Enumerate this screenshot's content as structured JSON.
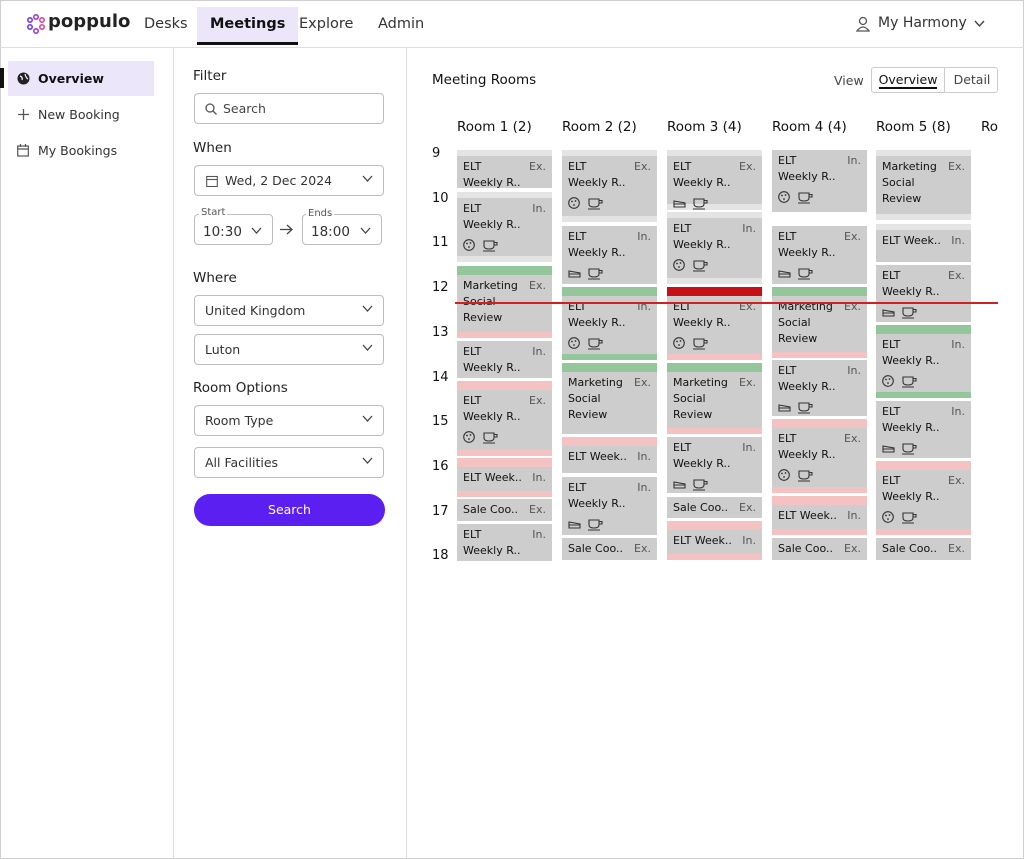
{
  "nav": {
    "logo": "poppulo",
    "tabs": [
      "Desks",
      "Meetings",
      "Explore",
      "Admin"
    ],
    "user": "My Harmony"
  },
  "sidebar": {
    "items": [
      "Overview",
      "New Booking",
      "My Bookings"
    ]
  },
  "filter": {
    "title": "Filter",
    "search_placeholder": "Search",
    "when": "When",
    "date": "Wed, 2 Dec 2024",
    "start_label": "Start",
    "start": "10:30",
    "end_label": "Ends",
    "end": "18:00",
    "where": "Where",
    "country": "United Kingdom",
    "city": "Luton",
    "room_options": "Room Options",
    "room_type": "Room Type",
    "facilities": "All Facilities",
    "button": "Search"
  },
  "main": {
    "title": "Meeting Rooms",
    "view_label": "View",
    "views": [
      "Overview",
      "Detail"
    ],
    "hours": [
      "9",
      "10",
      "11",
      "12",
      "13",
      "14",
      "15",
      "16",
      "17",
      "18"
    ],
    "rooms": [
      {
        "name": "Room 1 (2)",
        "bookings": [
          {
            "lines": [
              "ELT",
              "Weekly R.."
            ],
            "tag": "Ex."
          },
          {
            "lines": [
              "ELT",
              "Weekly R.."
            ],
            "tag": "In."
          },
          {
            "lines": [
              "Marketing",
              "Social",
              "Review"
            ],
            "tag": "Ex."
          },
          {
            "lines": [
              "ELT",
              "Weekly R.."
            ],
            "tag": "In."
          },
          {
            "lines": [
              "ELT",
              "Weekly R.."
            ],
            "tag": "Ex."
          },
          {
            "lines": [
              "ELT Week.."
            ],
            "tag": "In."
          },
          {
            "lines": [
              "Sale Coo.."
            ],
            "tag": "Ex."
          },
          {
            "lines": [
              "ELT",
              "Weekly R.."
            ],
            "tag": "In."
          }
        ]
      },
      {
        "name": "Room 2 (2)",
        "bookings": [
          {
            "lines": [
              "ELT",
              "Weekly R.."
            ],
            "tag": "Ex."
          },
          {
            "lines": [
              "ELT",
              "Weekly R.."
            ],
            "tag": "In."
          },
          {
            "lines": [
              "ELT",
              "Weekly R.."
            ],
            "tag": "In."
          },
          {
            "lines": [
              "Marketing",
              "Social",
              "Review"
            ],
            "tag": "Ex."
          },
          {
            "lines": [
              "ELT Week.."
            ],
            "tag": "In."
          },
          {
            "lines": [
              "ELT",
              "Weekly R.."
            ],
            "tag": "In."
          },
          {
            "lines": [
              "Sale Coo.."
            ],
            "tag": "Ex."
          }
        ]
      },
      {
        "name": "Room 3 (4)",
        "bookings": [
          {
            "lines": [
              "ELT",
              "Weekly R.."
            ],
            "tag": "Ex."
          },
          {
            "lines": [
              "ELT",
              "Weekly R.."
            ],
            "tag": "In."
          },
          {
            "lines": [
              "ELT",
              "Weekly R.."
            ],
            "tag": "Ex."
          },
          {
            "lines": [
              "Marketing",
              "Social",
              "Review"
            ],
            "tag": "Ex."
          },
          {
            "lines": [
              "ELT",
              "Weekly R.."
            ],
            "tag": "In."
          },
          {
            "lines": [
              "Sale Coo.."
            ],
            "tag": "Ex."
          },
          {
            "lines": [
              "ELT Week.."
            ],
            "tag": "In."
          }
        ]
      },
      {
        "name": "Room 4 (4)",
        "bookings": [
          {
            "lines": [
              "ELT",
              "Weekly R.."
            ],
            "tag": "In."
          },
          {
            "lines": [
              "ELT",
              "Weekly R.."
            ],
            "tag": "Ex."
          },
          {
            "lines": [
              "Marketing",
              "Social",
              "Review"
            ],
            "tag": "Ex."
          },
          {
            "lines": [
              "ELT",
              "Weekly R.."
            ],
            "tag": "In."
          },
          {
            "lines": [
              "ELT",
              "Weekly R.."
            ],
            "tag": "Ex."
          },
          {
            "lines": [
              "ELT Week.."
            ],
            "tag": "In."
          },
          {
            "lines": [
              "Sale Coo.."
            ],
            "tag": "Ex."
          }
        ]
      },
      {
        "name": "Room 5 (8)",
        "bookings": [
          {
            "lines": [
              "Marketing",
              "Social",
              "Review"
            ],
            "tag": "Ex."
          },
          {
            "lines": [
              "ELT Week.."
            ],
            "tag": "In."
          },
          {
            "lines": [
              "ELT",
              "Weekly R.."
            ],
            "tag": "Ex."
          },
          {
            "lines": [
              "ELT",
              "Weekly R.."
            ],
            "tag": "In."
          },
          {
            "lines": [
              "ELT",
              "Weekly R.."
            ],
            "tag": "In."
          },
          {
            "lines": [
              "ELT",
              "Weekly R.."
            ],
            "tag": "Ex."
          },
          {
            "lines": [
              "Sale Coo.."
            ],
            "tag": "Ex."
          }
        ]
      },
      {
        "name": "Ro",
        "bookings": []
      }
    ]
  }
}
